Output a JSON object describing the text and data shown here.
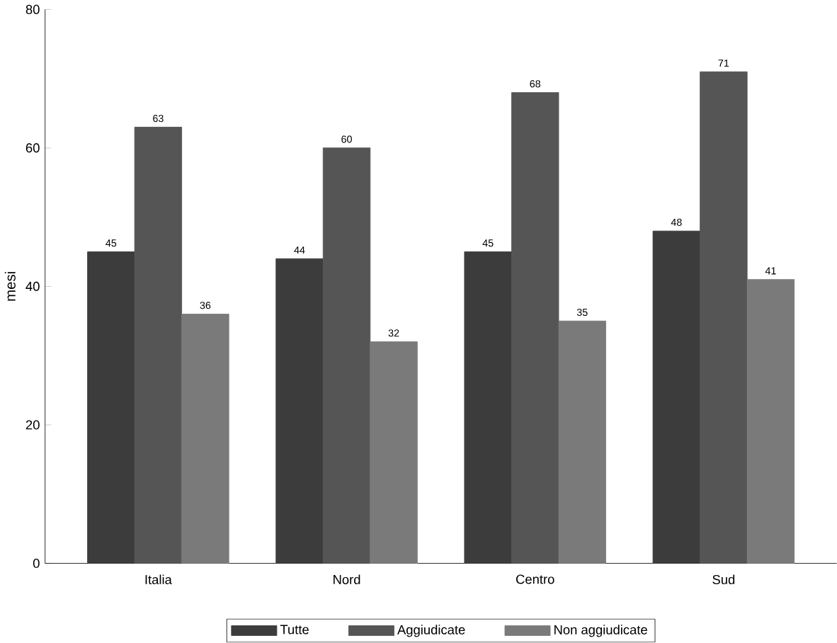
{
  "chart_data": {
    "type": "bar",
    "ylabel": "mesi",
    "categories": [
      "Italia",
      "Nord",
      "Centro",
      "Sud"
    ],
    "series": [
      {
        "name": "Tutte",
        "color": "#3c3c3c",
        "values": [
          45,
          44,
          45,
          48
        ]
      },
      {
        "name": "Aggiudicate",
        "color": "#555555",
        "values": [
          63,
          60,
          68,
          71
        ]
      },
      {
        "name": "Non aggiudicate",
        "color": "#7a7a7a",
        "values": [
          36,
          32,
          35,
          41
        ]
      }
    ],
    "ylim": [
      0,
      80
    ],
    "yticks": [
      0,
      20,
      40,
      60,
      80
    ],
    "data_labels": true,
    "legend": "bottom",
    "grid": false
  }
}
